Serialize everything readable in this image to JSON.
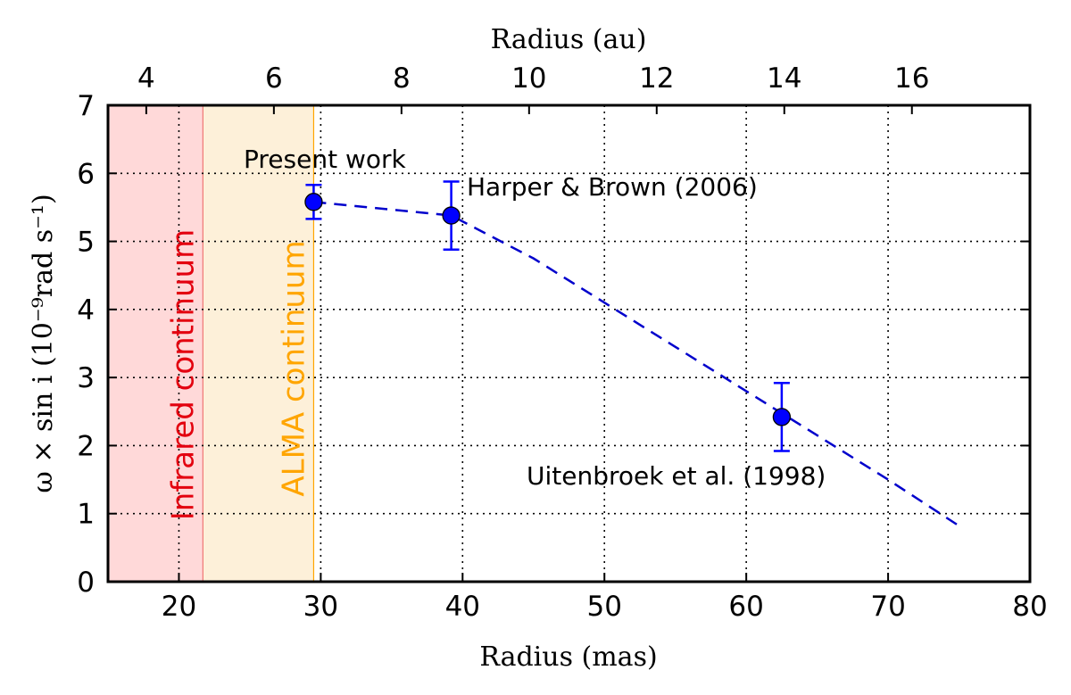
{
  "chart_data": {
    "type": "scatter",
    "xlabel": "Radius (mas)",
    "x2label": "Radius (au)",
    "ylabel": "ω × sin i (10⁻⁹rad s⁻¹)",
    "xlim": [
      15,
      80
    ],
    "ylim": [
      0,
      7
    ],
    "x2lim": [
      3.4,
      17.85
    ],
    "x_ticks": [
      "20",
      "30",
      "40",
      "50",
      "60",
      "70",
      "80"
    ],
    "y_ticks": [
      "0",
      "1",
      "2",
      "3",
      "4",
      "5",
      "6",
      "7"
    ],
    "x2_ticks": [
      "4",
      "6",
      "8",
      "10",
      "12",
      "14",
      "16"
    ],
    "grid": true,
    "regions": [
      {
        "label": "Infrared continuum",
        "x_from": 15,
        "x_to": 21.7,
        "color": "#ffd9d9",
        "text_color": "#e3000f"
      },
      {
        "label": "ALMA continuum",
        "x_from": 21.7,
        "x_to": 29.5,
        "color": "#fdf0d9",
        "text_color": "#ffa500"
      }
    ],
    "points": [
      {
        "x": 29.5,
        "y": 5.58,
        "err": 0.25,
        "label": "Present work"
      },
      {
        "x": 39.2,
        "y": 5.38,
        "err": 0.5,
        "label": "Harper & Brown (2006)"
      },
      {
        "x": 62.5,
        "y": 2.42,
        "err": 0.5,
        "label": "Uitenbroek et al. (1998)"
      }
    ],
    "fit_line": {
      "x": [
        29.5,
        39.2,
        45.0,
        50.0,
        55.0,
        60.0,
        65.0,
        70.0,
        75.0
      ],
      "y": [
        5.58,
        5.38,
        4.75,
        4.1,
        3.45,
        2.8,
        2.15,
        1.5,
        0.82
      ]
    },
    "colors": {
      "points": "#0000ff",
      "line": "#0000cc"
    }
  }
}
